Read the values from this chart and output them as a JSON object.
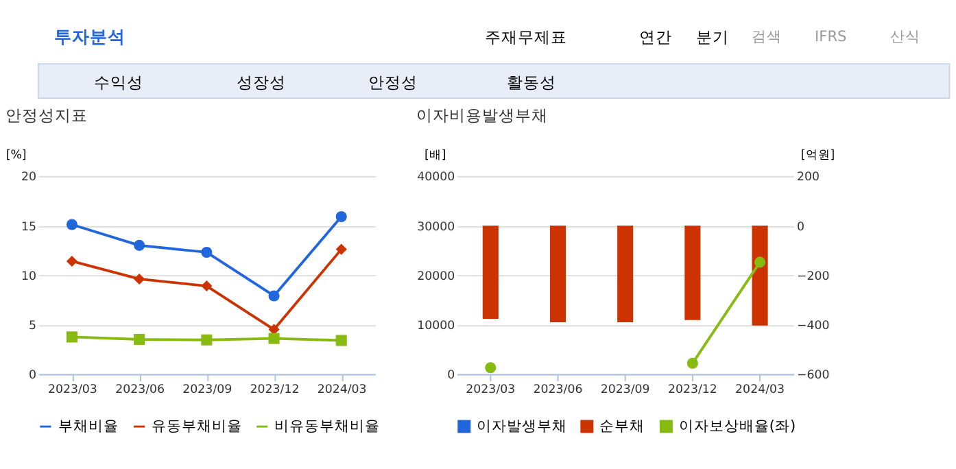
{
  "chart_data": [
    {
      "type": "line",
      "title": "안정성지표",
      "ylabel": "[%]",
      "annotations": [
        "투자분석",
        "주재무제표",
        "연간",
        "분기",
        "검색",
        "IFRS",
        "산식",
        "수익성",
        "성장성",
        "안정성",
        "활동성"
      ],
      "categories": [
        "2023/03",
        "2023/06",
        "2023/09",
        "2023/12",
        "2024/03"
      ],
      "series": [
        {
          "name": "부채비율",
          "color": "#2266dd",
          "marker": "circle",
          "values": [
            15.1,
            13.0,
            12.3,
            7.9,
            15.9
          ]
        },
        {
          "name": "유동부채비율",
          "color": "#cc3300",
          "marker": "diamond",
          "values": [
            11.4,
            9.6,
            8.9,
            4.5,
            12.6
          ]
        },
        {
          "name": "비유동부채비율",
          "color": "#88bb11",
          "marker": "square",
          "values": [
            3.75,
            3.5,
            3.45,
            3.6,
            3.4
          ]
        }
      ],
      "ylim": [
        0,
        20
      ],
      "yticks": [
        0,
        5,
        10,
        15,
        20
      ],
      "grid": "y",
      "legend": "bottom"
    },
    {
      "type": "bar",
      "title": "이자비용발생부채",
      "ylabel": "[배]",
      "y2label": "[억원]",
      "categories": [
        "2023/03",
        "2023/06",
        "2023/09",
        "2023/12",
        "2024/03"
      ],
      "series": [
        {
          "name": "이자발생부채",
          "color": "#2266dd",
          "axis": "y2",
          "values": [
            null,
            null,
            null,
            null,
            null
          ]
        },
        {
          "name": "순부채",
          "color": "#cc3300",
          "axis": "y2",
          "values": [
            -377,
            -391,
            -391,
            -382,
            -404
          ]
        },
        {
          "name": "이자보상배율(좌)",
          "type": "line",
          "color": "#88bb11",
          "marker": "circle",
          "axis": "y",
          "values": [
            1300,
            null,
            null,
            2200,
            22600
          ]
        }
      ],
      "ylim": [
        0,
        40000
      ],
      "yticks": [
        0,
        10000,
        20000,
        30000,
        40000
      ],
      "y2lim": [
        -600,
        200
      ],
      "y2ticks": [
        -600,
        -400,
        -200,
        0,
        200
      ],
      "grid": "y",
      "legend": "bottom"
    }
  ]
}
